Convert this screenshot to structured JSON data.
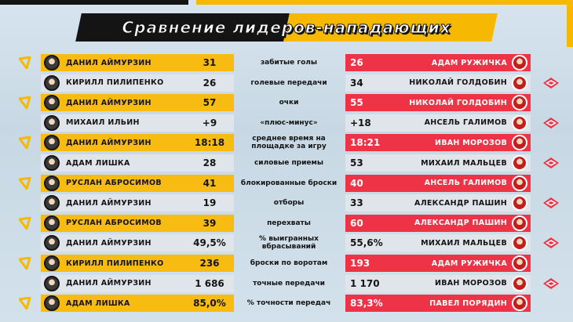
{
  "title": "Сравнение лидеров-нападающих",
  "colors": {
    "yellow": "#f8bb12",
    "red": "#ef3347",
    "black": "#141414",
    "grey": "#dfe5ea"
  },
  "rows": [
    {
      "metric": "забитые голы",
      "left_name": "Данил Аймурзин",
      "left_value": "31",
      "right_value": "26",
      "right_name": "Адам Ружичка",
      "leader": "both",
      "spartak": false
    },
    {
      "metric": "голевые передачи",
      "left_name": "Кирилл Пилипенко",
      "left_value": "26",
      "right_value": "34",
      "right_name": "Николай Голдобин",
      "leader": "none",
      "spartak": true
    },
    {
      "metric": "очки",
      "left_name": "Данил Аймурзин",
      "left_value": "57",
      "right_value": "55",
      "right_name": "Николай Голдобин",
      "leader": "both",
      "spartak": false
    },
    {
      "metric": "«плюс-минус»",
      "left_name": "Михаил Ильин",
      "left_value": "+9",
      "right_value": "+18",
      "right_name": "Ансель Галимов",
      "leader": "none",
      "spartak": true
    },
    {
      "metric": "среднее время на площадке за игру",
      "left_name": "Данил Аймурзин",
      "left_value": "18:18",
      "right_value": "18:21",
      "right_name": "Иван Морозов",
      "leader": "both",
      "spartak": false
    },
    {
      "metric": "силовые приемы",
      "left_name": "Адам Лишка",
      "left_value": "28",
      "right_value": "53",
      "right_name": "Михаил Мальцев",
      "leader": "none",
      "spartak": true
    },
    {
      "metric": "блокированные броски",
      "left_name": "Руслан Абросимов",
      "left_value": "41",
      "right_value": "40",
      "right_name": "Ансель Галимов",
      "leader": "both",
      "spartak": false
    },
    {
      "metric": "отборы",
      "left_name": "Данил Аймурзин",
      "left_value": "19",
      "right_value": "33",
      "right_name": "Александр Пашин",
      "leader": "none",
      "spartak": true
    },
    {
      "metric": "перехваты",
      "left_name": "Руслан Абросимов",
      "left_value": "39",
      "right_value": "60",
      "right_name": "Александр Пашин",
      "leader": "both",
      "spartak": false
    },
    {
      "metric": "% выигранных вбрасываний",
      "left_name": "Данил Аймурзин",
      "left_value": "49,5%",
      "right_value": "55,6%",
      "right_name": "Михаил Мальцев",
      "leader": "none",
      "spartak": true
    },
    {
      "metric": "броски по воротам",
      "left_name": "Кирилл Пилипенко",
      "left_value": "236",
      "right_value": "193",
      "right_name": "Адам Ружичка",
      "leader": "both",
      "spartak": false
    },
    {
      "metric": "точные передачи",
      "left_name": "Данил Аймурзин",
      "left_value": "1 686",
      "right_value": "1 170",
      "right_name": "Иван Морозов",
      "leader": "none",
      "spartak": true
    },
    {
      "metric": "% точности передач",
      "left_name": "Адам Лишка",
      "left_value": "85,0%",
      "right_value": "83,3%",
      "right_name": "Павел Порядин",
      "leader": "both",
      "spartak": false
    }
  ]
}
